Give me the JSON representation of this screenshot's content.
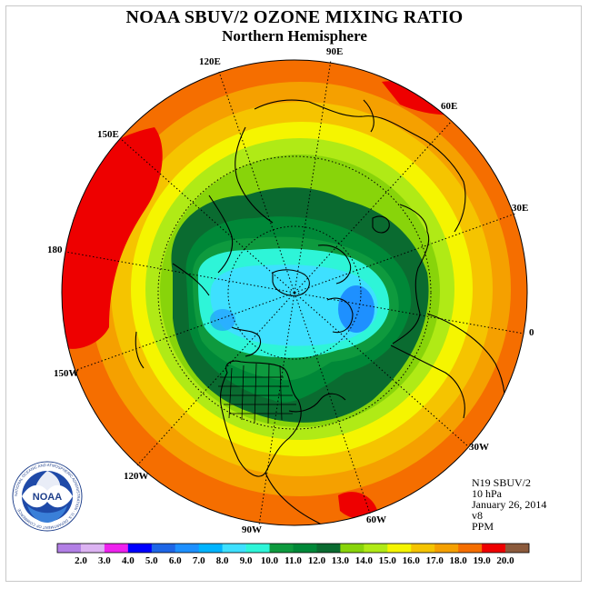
{
  "title": "NOAA SBUV/2 OZONE MIXING RATIO",
  "subtitle": "Northern Hemisphere",
  "longitude_labels": {
    "90E": "90E",
    "60E": "60E",
    "30E": "30E",
    "0": "0",
    "30W": "30W",
    "60W": "60W",
    "90W": "90W",
    "120W": "120W",
    "150W": "150W",
    "180": "180",
    "150E": "150E",
    "120E": "120E"
  },
  "info": {
    "instrument": "N19 SBUV/2",
    "level": "10 hPa",
    "date": "January 26, 2014",
    "version": "v8",
    "units": "PPM"
  },
  "legend": {
    "ticks": [
      "2.0",
      "3.0",
      "4.0",
      "5.0",
      "6.0",
      "7.0",
      "8.0",
      "9.0",
      "10.0",
      "11.0",
      "12.0",
      "13.0",
      "14.0",
      "15.0",
      "16.0",
      "17.0",
      "18.0",
      "19.0",
      "20.0"
    ],
    "colors": [
      "#b27fe5",
      "#dcb3f2",
      "#ee22ee",
      "#0000ff",
      "#1e66e6",
      "#1e90ff",
      "#00b4ff",
      "#3ee0ff",
      "#2ef5d8",
      "#0e9a3e",
      "#008838",
      "#0a6b30",
      "#88d40a",
      "#b0ea16",
      "#f5f500",
      "#f5c400",
      "#f5a000",
      "#f56e00",
      "#ee0000",
      "#8b5a3c"
    ]
  },
  "logo": {
    "center_text": "NOAA",
    "ring_text": "NATIONAL OCEANIC AND ATMOSPHERIC ADMINISTRATION · U.S. DEPARTMENT OF COMMERCE"
  }
}
